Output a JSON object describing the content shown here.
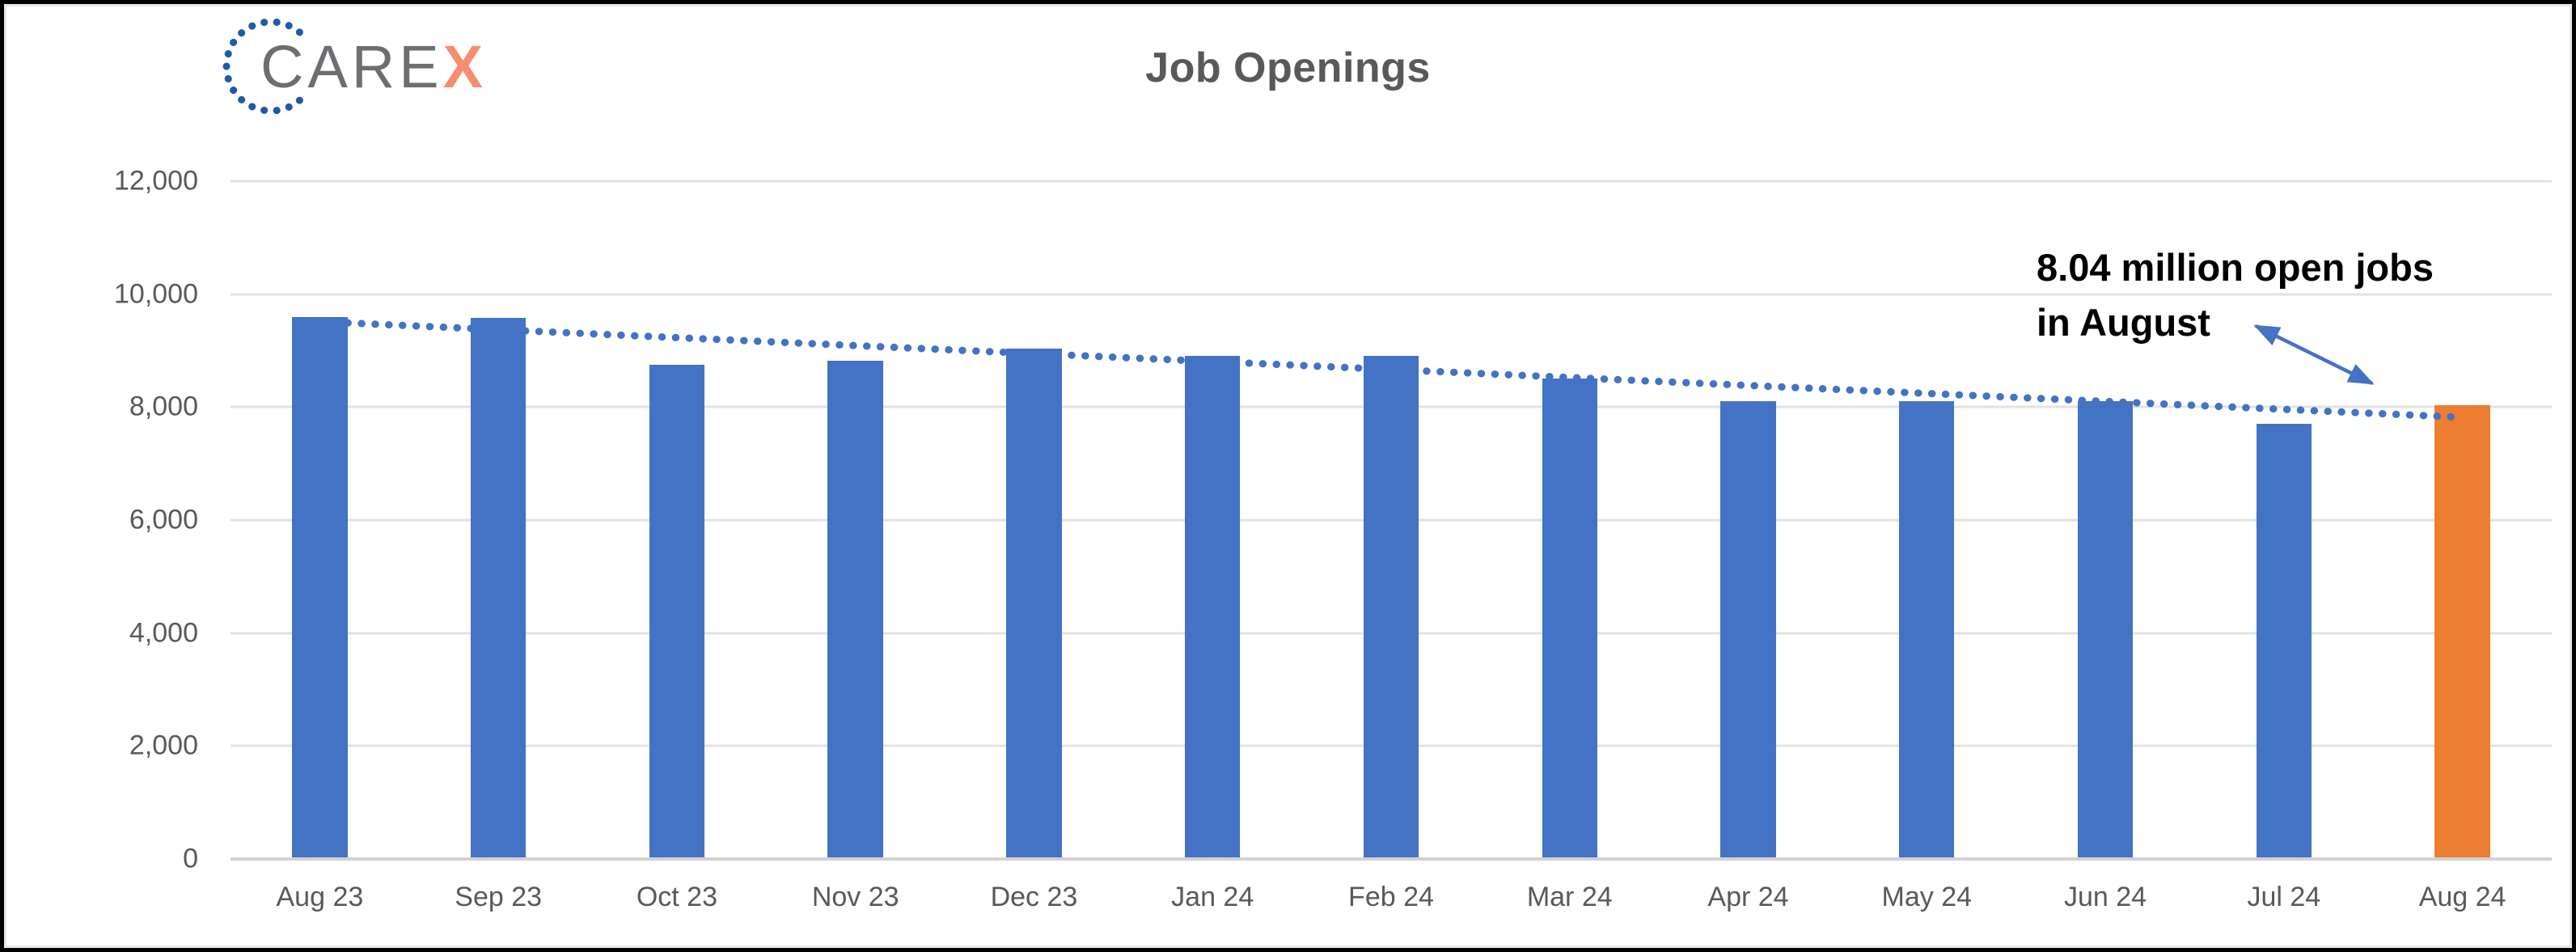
{
  "logo": {
    "text": "CARE",
    "accent": "X",
    "text_color": "#6D6E71",
    "accent_color": "#F68D6E",
    "dots_color": "#1F5AA8"
  },
  "chart_data": {
    "type": "bar",
    "title": "Job Openings",
    "categories": [
      "Aug 23",
      "Sep 23",
      "Oct 23",
      "Nov 23",
      "Dec 23",
      "Jan 24",
      "Feb 24",
      "Mar 24",
      "Apr 24",
      "May 24",
      "Jun 24",
      "Jul 24",
      "Aug 24"
    ],
    "values": [
      9600,
      9580,
      8750,
      8820,
      9030,
      8900,
      8900,
      8500,
      8100,
      8100,
      8100,
      7700,
      8040
    ],
    "values_unit": "thousands of job openings",
    "ylim": [
      0,
      12000
    ],
    "yticks": [
      0,
      2000,
      4000,
      6000,
      8000,
      10000,
      12000
    ],
    "ytick_labels": [
      "0",
      "2,000",
      "4,000",
      "6,000",
      "8,000",
      "10,000",
      "12,000"
    ],
    "grid": true,
    "legend": false,
    "bar_color": "#4472C4",
    "highlight": {
      "index": 12,
      "color": "#ED7D31"
    },
    "trendline": {
      "style": "dotted",
      "color": "#4472C4",
      "x1_frac": 0.0505,
      "y1_value": 9490,
      "x2_frac": 0.961,
      "y2_value": 7820
    },
    "annotation": {
      "line1": "8.04 million open jobs",
      "line2": "in August",
      "text_color": "#000000",
      "arrow_color": "#4472C4"
    }
  },
  "colors": {
    "title": "#595959",
    "axis_label": "#595959",
    "gridline": "#E2E2E2",
    "axis_line": "#D2D2D2",
    "background": "#FFFFFF",
    "frame": "#000000"
  }
}
